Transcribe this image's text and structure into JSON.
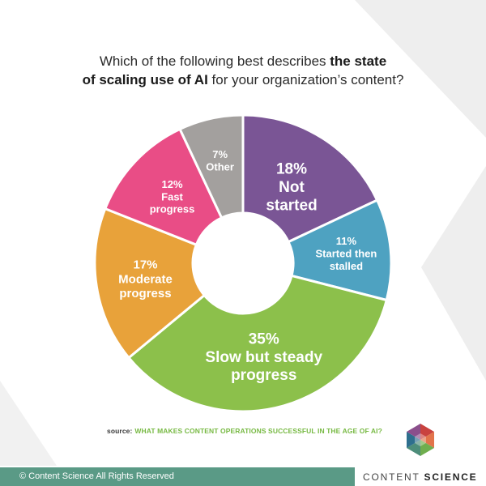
{
  "header": {
    "title_pre": "Which of the following best describes ",
    "title_bold_1": "the state",
    "title_bold_2": "of scaling use of AI",
    "title_post": " for your organization’s content?"
  },
  "chart_data": {
    "type": "pie",
    "variant": "donut",
    "categories": [
      "Not started",
      "Started then stalled",
      "Slow but steady progress",
      "Moderate progress",
      "Fast progress",
      "Other"
    ],
    "values": [
      18,
      11,
      35,
      17,
      12,
      7
    ],
    "labels": [
      {
        "pct": "18%",
        "lines": [
          "Not",
          "started"
        ]
      },
      {
        "pct": "11%",
        "lines": [
          "Started then",
          "stalled"
        ]
      },
      {
        "pct": "35%",
        "lines": [
          "Slow but steady",
          "progress"
        ]
      },
      {
        "pct": "17%",
        "lines": [
          "Moderate",
          "progress"
        ]
      },
      {
        "pct": "12%",
        "lines": [
          "Fast",
          "progress"
        ]
      },
      {
        "pct": "7%",
        "lines": [
          "Other"
        ]
      }
    ],
    "colors": [
      "#7a5595",
      "#4ea2c1",
      "#8cc04b",
      "#e8a23a",
      "#e94d86",
      "#a3a09e"
    ]
  },
  "source": {
    "label": "source:",
    "title": "WHAT MAKES CONTENT OPERATIONS SUCCESSFUL IN THE AGE OF AI?"
  },
  "footer": {
    "copyright": "© Content Science All Rights Reserved",
    "brand_light": "CONTENT",
    "brand_bold": "SCIENCE"
  }
}
